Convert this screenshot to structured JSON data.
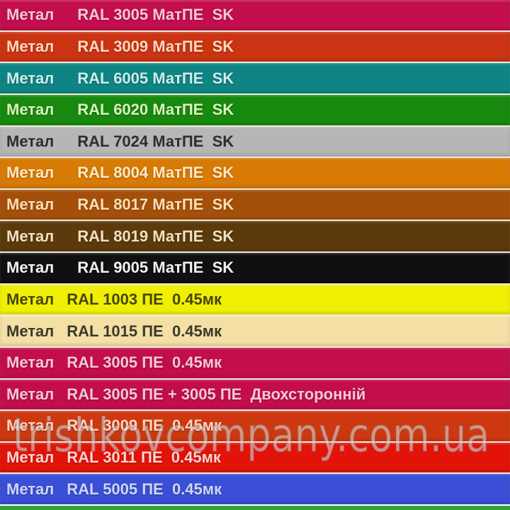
{
  "watermark": {
    "text": "trishkovcompany.com.ua"
  },
  "separator_color": "#F2EDDC",
  "partial_row": {
    "bg": "#2EA434"
  },
  "rows": [
    {
      "prefix": "Метал",
      "spec": "RAL 3005 МатПЕ  SK",
      "bg": "#C30E4D",
      "fg": "#F5C8D6"
    },
    {
      "prefix": "Метал",
      "spec": "RAL 3009 МатПЕ  SK",
      "bg": "#CA3412",
      "fg": "#FFD8C2"
    },
    {
      "prefix": "Метал",
      "spec": "RAL 6005 МатПЕ  SK",
      "bg": "#0E8584",
      "fg": "#CFEDEA"
    },
    {
      "prefix": "Метал",
      "spec": "RAL 6020 МатПЕ  SK",
      "bg": "#18890F",
      "fg": "#DCF2BE"
    },
    {
      "prefix": "Метал",
      "spec": "RAL 7024 МатПЕ  SK",
      "bg": "#B6B6B4",
      "fg": "#2E2E2E"
    },
    {
      "prefix": "Метал",
      "spec": "RAL 8004 МатПЕ  SK",
      "bg": "#D87A06",
      "fg": "#FFE9C4"
    },
    {
      "prefix": "Метал",
      "spec": "RAL 8017 МатПЕ  SK",
      "bg": "#A5500A",
      "fg": "#FFDFB6"
    },
    {
      "prefix": "Метал",
      "spec": "RAL 8019 МатПЕ  SK",
      "bg": "#5C3A0B",
      "fg": "#F2E1C2"
    },
    {
      "prefix": "Метал",
      "spec": "RAL 9005 МатПЕ  SK",
      "bg": "#101010",
      "fg": "#F2F2F2"
    },
    {
      "prefix": "Метал",
      "spec": "RAL 1003 ПЕ  0.45мк",
      "bg": "#F0EF03",
      "fg": "#46460A"
    },
    {
      "prefix": "Метал",
      "spec": "RAL 1015 ПЕ  0.45мк",
      "bg": "#F4E0A5",
      "fg": "#3C392C"
    },
    {
      "prefix": "Метал",
      "spec": "RAL 3005 ПЕ  0.45мк",
      "bg": "#C30E4D",
      "fg": "#F5C8D6"
    },
    {
      "prefix": "Метал",
      "spec": "RAL 3005 ПЕ + 3005 ПЕ  Двохсторонній",
      "bg": "#C30E4D",
      "fg": "#F5C8D6"
    },
    {
      "prefix": "Метал",
      "spec": "RAL 3009 ПЕ  0.45мк",
      "bg": "#CE3811",
      "fg": "#FFD8C2"
    },
    {
      "prefix": "Метал",
      "spec": "RAL 3011 ПЕ  0.45мк",
      "bg": "#E21309",
      "fg": "#FFD6CF"
    },
    {
      "prefix": "Метал",
      "spec": "RAL 5005 ПЕ  0.45мк",
      "bg": "#3A4FD6",
      "fg": "#CCD7F7"
    }
  ]
}
